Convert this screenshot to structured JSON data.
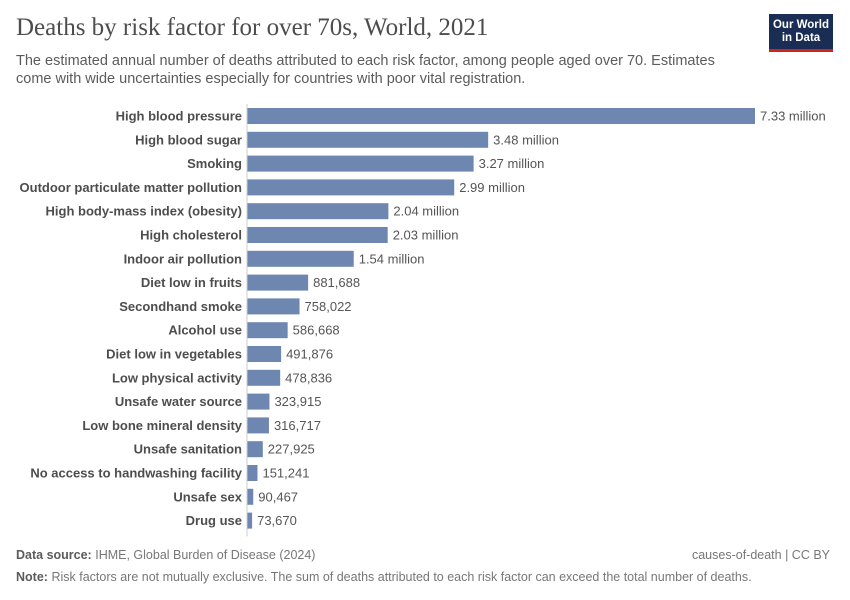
{
  "header": {
    "title": "Deaths by risk factor for over 70s, World, 2021",
    "subtitle": "The estimated annual number of deaths attributed to each risk factor, among people aged over 70. Estimates come with wide uncertainties especially for countries with poor vital registration.",
    "logo": "Our World in Data"
  },
  "chart_data": {
    "type": "bar",
    "orientation": "horizontal",
    "categories": [
      "High blood pressure",
      "High blood sugar",
      "Smoking",
      "Outdoor particulate matter pollution",
      "High body-mass index (obesity)",
      "High cholesterol",
      "Indoor air pollution",
      "Diet low in fruits",
      "Secondhand smoke",
      "Alcohol use",
      "Diet low in vegetables",
      "Low physical activity",
      "Unsafe water source",
      "Low bone mineral density",
      "Unsafe sanitation",
      "No access to handwashing facility",
      "Unsafe sex",
      "Drug use"
    ],
    "values": [
      7330000,
      3480000,
      3270000,
      2990000,
      2040000,
      2030000,
      1540000,
      881688,
      758022,
      586668,
      491876,
      478836,
      323915,
      316717,
      227925,
      151241,
      90467,
      73670
    ],
    "data_labels": [
      "7.33 million",
      "3.48 million",
      "3.27 million",
      "2.99 million",
      "2.04 million",
      "2.03 million",
      "1.54 million",
      "881,688",
      "758,022",
      "586,668",
      "491,876",
      "478,836",
      "323,915",
      "316,717",
      "227,925",
      "151,241",
      "90,467",
      "73,670"
    ],
    "bar_color": "#6d87b1",
    "grid": false
  },
  "footer": {
    "source_label": "Data source:",
    "source": "IHME, Global Burden of Disease (2024)",
    "license": "causes-of-death | CC BY",
    "note_label": "Note:",
    "note": "Risk factors are not mutually exclusive. The sum of deaths attributed to each risk factor can exceed the total number of deaths."
  }
}
